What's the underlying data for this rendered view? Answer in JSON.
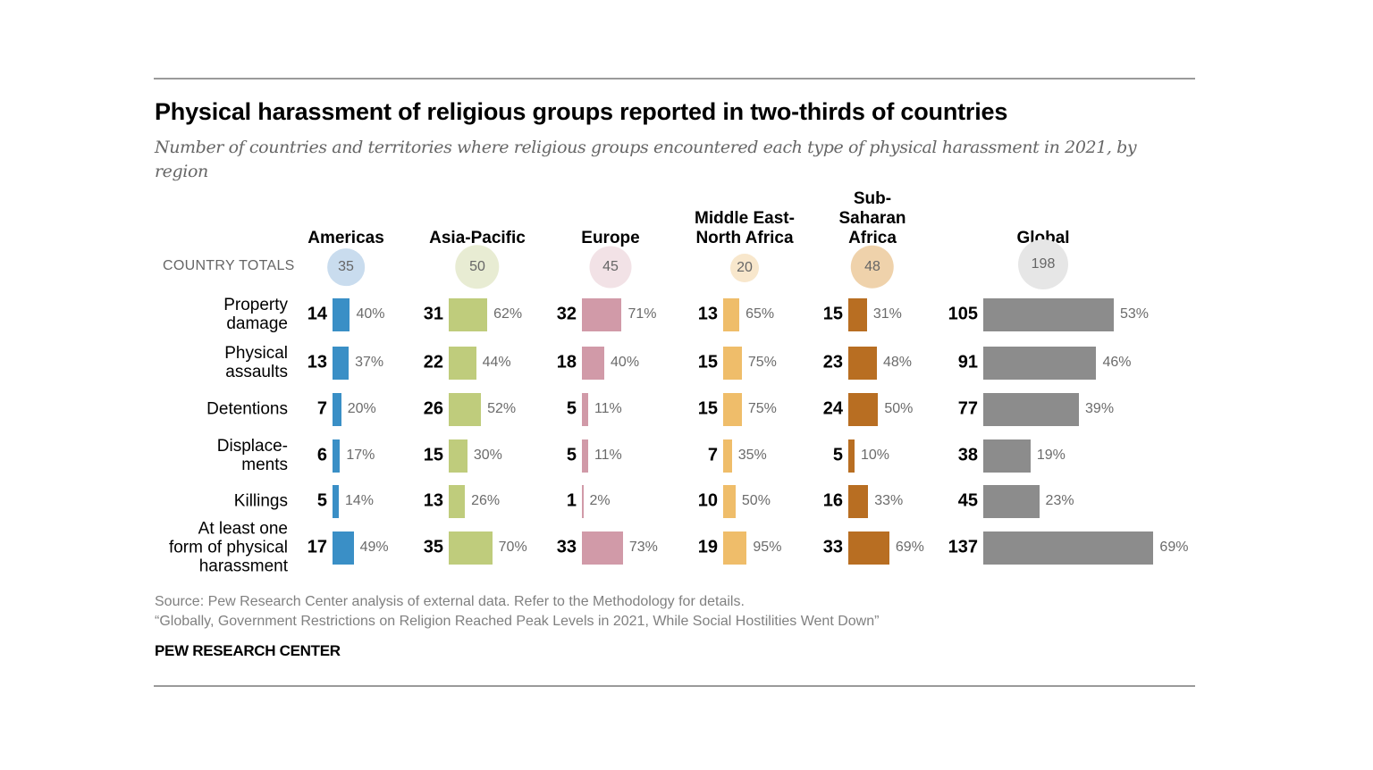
{
  "title": "Physical harassment of religious groups reported in two-thirds of countries",
  "subtitle": "Number of countries and territories where religious groups encountered each type of physical harassment in 2021, by region",
  "footer": {
    "source": "Source: Pew Research Center analysis of external data. Refer to the Methodology for details.",
    "report": "“Globally, Government Restrictions on Religion Reached Peak Levels in 2021, While Social Hostilities Went Down”",
    "brand": "PEW RESEARCH CENTER"
  },
  "chart_data": {
    "type": "bar",
    "orientation": "horizontal",
    "title": "Physical harassment of religious groups reported in two-thirds of countries",
    "subtitle": "Number of countries and territories where religious groups encountered each type of physical harassment in 2021, by region",
    "totals_label": "COUNTRY TOTALS",
    "categories": [
      "Property\ndamage",
      "Physical\nassaults",
      "Detentions",
      "Displace-\nments",
      "Killings",
      "At least one\nform of physical\nharassment"
    ],
    "series": [
      {
        "name": "Americas",
        "label": "Americas",
        "total": 35,
        "color": "#3a8fc6",
        "circle_color": "#c9dcee",
        "values": [
          14,
          13,
          7,
          6,
          5,
          17
        ],
        "percents": [
          "40%",
          "37%",
          "20%",
          "17%",
          "14%",
          "49%"
        ]
      },
      {
        "name": "Asia-Pacific",
        "label": "Asia-Pacific",
        "total": 50,
        "color": "#bfcc7c",
        "circle_color": "#e8ecd3",
        "values": [
          31,
          22,
          26,
          15,
          13,
          35
        ],
        "percents": [
          "62%",
          "44%",
          "52%",
          "30%",
          "26%",
          "70%"
        ]
      },
      {
        "name": "Europe",
        "label": "Europe",
        "total": 45,
        "color": "#d19aa8",
        "circle_color": "#f2e2e6",
        "values": [
          32,
          18,
          5,
          5,
          1,
          33
        ],
        "percents": [
          "71%",
          "40%",
          "11%",
          "11%",
          "2%",
          "73%"
        ]
      },
      {
        "name": "Middle East-North Africa",
        "label": "Middle East-\nNorth Africa",
        "total": 20,
        "color": "#efbd6a",
        "circle_color": "#f8e7cc",
        "values": [
          13,
          15,
          15,
          7,
          10,
          19
        ],
        "percents": [
          "65%",
          "75%",
          "75%",
          "35%",
          "50%",
          "95%"
        ]
      },
      {
        "name": "Sub-Saharan Africa",
        "label": "Sub-\nSaharan\nAfrica",
        "total": 48,
        "color": "#b86e22",
        "circle_color": "#efd2ab",
        "values": [
          15,
          23,
          24,
          5,
          16,
          33
        ],
        "percents": [
          "31%",
          "48%",
          "50%",
          "10%",
          "33%",
          "69%"
        ]
      },
      {
        "name": "Global",
        "label": "Global",
        "total": 198,
        "color": "#8c8c8c",
        "circle_color": "#e6e6e6",
        "values": [
          105,
          91,
          77,
          38,
          45,
          137
        ],
        "percents": [
          "53%",
          "46%",
          "39%",
          "19%",
          "23%",
          "69%"
        ]
      }
    ],
    "xlabel": "",
    "ylabel": "",
    "grid": false,
    "legend": "none"
  }
}
